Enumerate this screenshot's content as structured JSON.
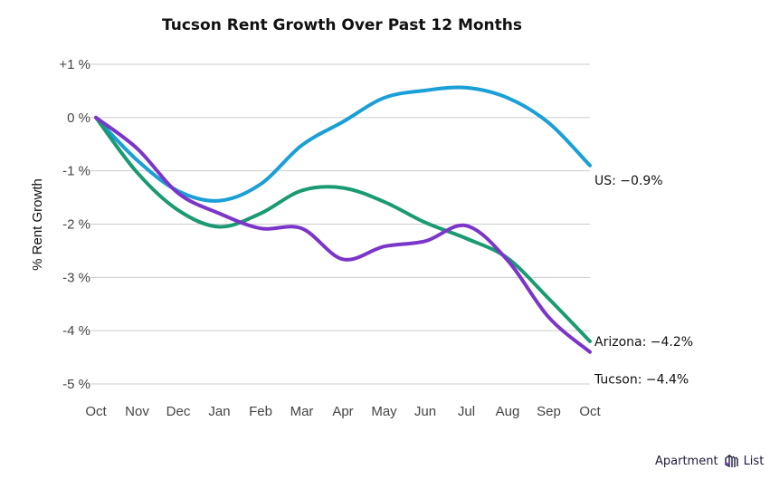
{
  "chart_data": {
    "type": "line",
    "title": "Tucson Rent Growth Over Past 12 Months",
    "xlabel": "",
    "ylabel": "% Rent Growth",
    "categories": [
      "Oct",
      "Nov",
      "Dec",
      "Jan",
      "Feb",
      "Mar",
      "Apr",
      "May",
      "Jun",
      "Jul",
      "Aug",
      "Sep",
      "Oct"
    ],
    "yticks": [
      1,
      0,
      -1,
      -2,
      -3,
      -4,
      -5
    ],
    "ytick_labels": [
      "+1 %",
      "0 %",
      "-1 %",
      "-2 %",
      "-3 %",
      "-4 %",
      "-5 %"
    ],
    "ylim": [
      -5,
      1
    ],
    "grid": true,
    "legend": "end-labels-right",
    "series": [
      {
        "name": "US",
        "color": "#1a9fd6",
        "end_label": "US: −0.9%",
        "values": [
          0,
          -0.8,
          -1.38,
          -1.56,
          -1.25,
          -0.52,
          -0.08,
          0.37,
          0.51,
          0.56,
          0.37,
          -0.1,
          -0.9
        ]
      },
      {
        "name": "Arizona",
        "color": "#1a9a72",
        "end_label": "Arizona: −4.2%",
        "values": [
          0,
          -1.03,
          -1.74,
          -2.05,
          -1.8,
          -1.37,
          -1.32,
          -1.58,
          -1.97,
          -2.27,
          -2.64,
          -3.4,
          -4.2
        ]
      },
      {
        "name": "Tucson",
        "color": "#7b35c9",
        "end_label": "Tucson: −4.4%",
        "values": [
          0,
          -0.58,
          -1.42,
          -1.8,
          -2.08,
          -2.08,
          -2.66,
          -2.42,
          -2.32,
          -2.03,
          -2.68,
          -3.75,
          -4.4
        ]
      }
    ]
  },
  "branding": {
    "logo_text_left": "Apartment",
    "logo_text_right": "List",
    "logo_icon": "building-icon",
    "logo_color": "#7b35c9"
  }
}
